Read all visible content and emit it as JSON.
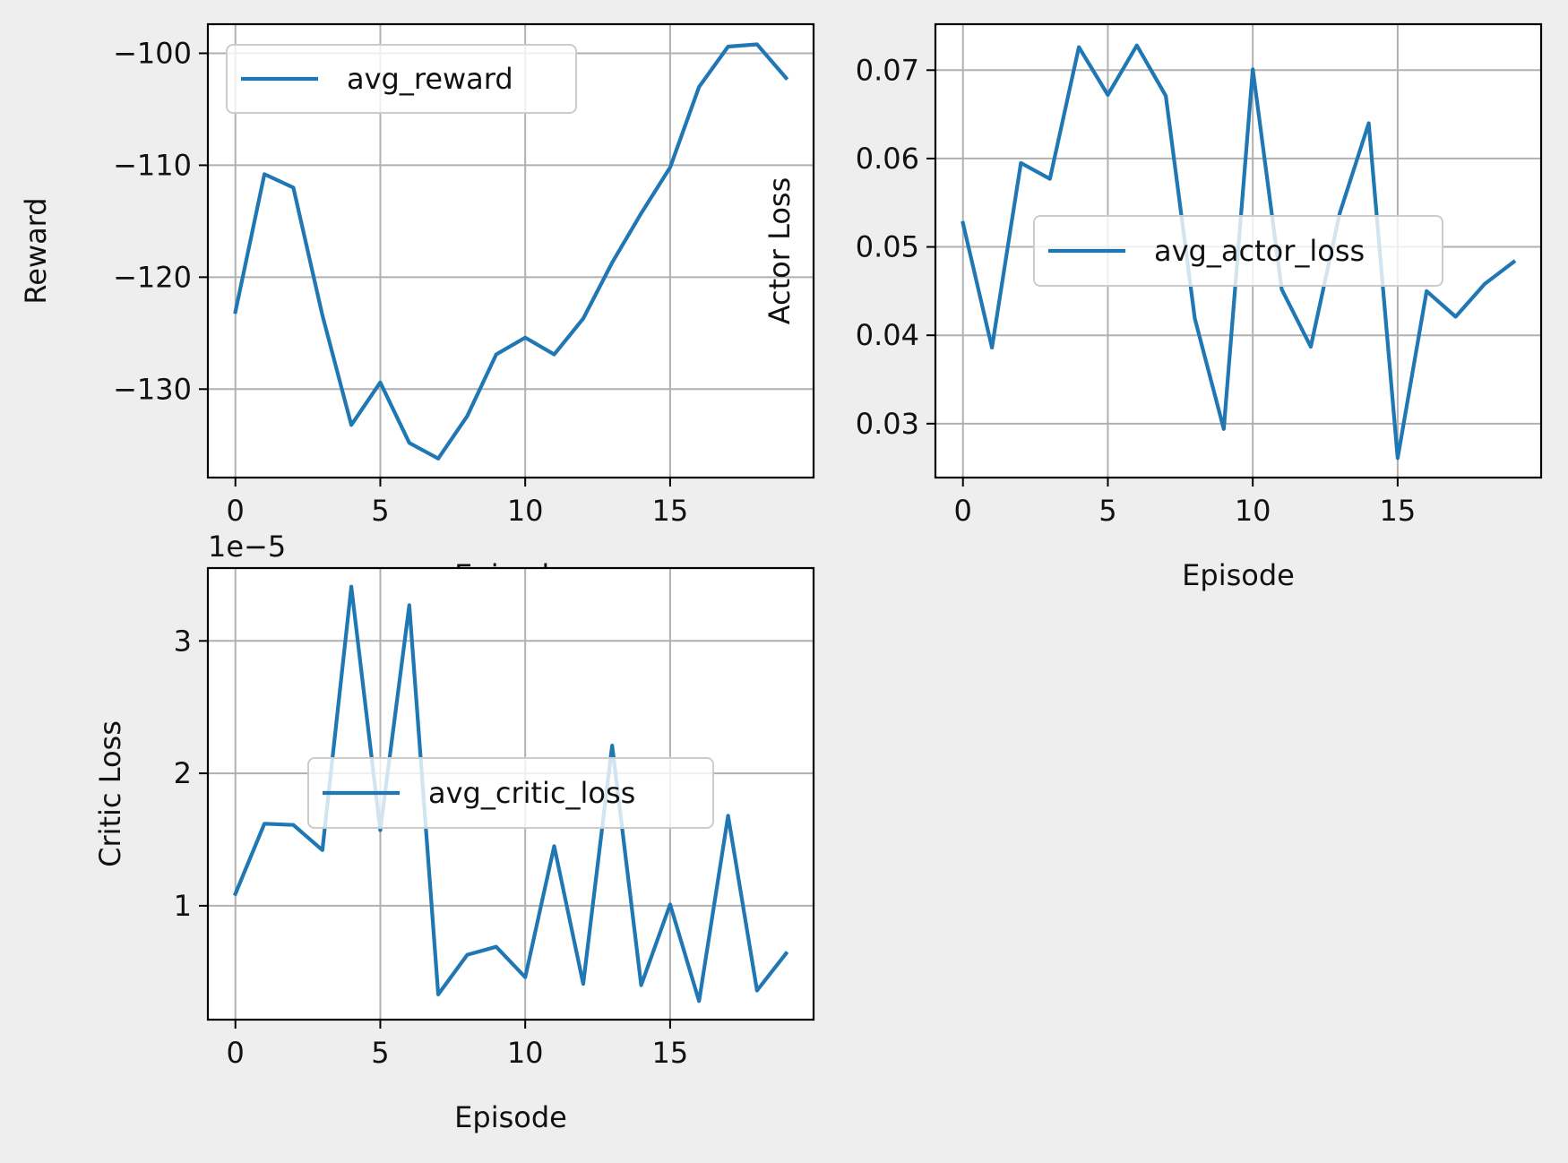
{
  "figure": {
    "background": "#eeeeee"
  },
  "chart_data": [
    {
      "type": "line",
      "id": "reward",
      "xlabel": "Episode",
      "ylabel": "Reward",
      "offset_text": "",
      "x": [
        0,
        1,
        2,
        3,
        4,
        5,
        6,
        7,
        8,
        9,
        10,
        11,
        12,
        13,
        14,
        15,
        16,
        17,
        18,
        19
      ],
      "series": [
        {
          "name": "avg_reward",
          "color": "#1f77b4",
          "values": [
            -123.1,
            -110.8,
            -112.0,
            -123.4,
            -133.2,
            -129.4,
            -134.8,
            -136.2,
            -132.4,
            -126.9,
            -125.4,
            -126.9,
            -123.7,
            -118.7,
            -114.3,
            -110.2,
            -103.0,
            -99.4,
            -99.2,
            -102.2
          ]
        }
      ],
      "xlim": [
        -0.95,
        19.95
      ],
      "ylim": [
        -137.9,
        -97.4
      ],
      "xticks": [
        0,
        5,
        10,
        15
      ],
      "yticks": [
        -130,
        -120,
        -110,
        -100
      ],
      "ytick_labels": [
        "−130",
        "−120",
        "−110",
        "−100"
      ],
      "grid": true,
      "legend": "upper left"
    },
    {
      "type": "line",
      "id": "actor",
      "xlabel": "Episode",
      "ylabel": "Actor Loss",
      "offset_text": "",
      "x": [
        0,
        1,
        2,
        3,
        4,
        5,
        6,
        7,
        8,
        9,
        10,
        11,
        12,
        13,
        14,
        15,
        16,
        17,
        18,
        19
      ],
      "series": [
        {
          "name": "avg_actor_loss",
          "color": "#1f77b4",
          "values": [
            0.0527,
            0.0386,
            0.0595,
            0.0577,
            0.0726,
            0.0672,
            0.0728,
            0.0671,
            0.0419,
            0.0294,
            0.0701,
            0.0452,
            0.0387,
            0.0538,
            0.064,
            0.0261,
            0.045,
            0.0421,
            0.0458,
            0.0483
          ]
        }
      ],
      "xlim": [
        -0.95,
        19.95
      ],
      "ylim": [
        0.0239,
        0.0752
      ],
      "xticks": [
        0,
        5,
        10,
        15
      ],
      "yticks": [
        0.03,
        0.04,
        0.05,
        0.06,
        0.07
      ],
      "ytick_labels": [
        "0.03",
        "0.04",
        "0.05",
        "0.06",
        "0.07"
      ],
      "grid": true,
      "legend": "center right"
    },
    {
      "type": "line",
      "id": "critic",
      "xlabel": "Episode",
      "ylabel": "Critic Loss",
      "offset_text": "1e−5",
      "x": [
        0,
        1,
        2,
        3,
        4,
        5,
        6,
        7,
        8,
        9,
        10,
        11,
        12,
        13,
        14,
        15,
        16,
        17,
        18,
        19
      ],
      "series": [
        {
          "name": "avg_critic_loss",
          "color": "#1f77b4",
          "values": [
            1.09,
            1.62,
            1.61,
            1.42,
            3.41,
            1.57,
            3.27,
            0.33,
            0.63,
            0.69,
            0.46,
            1.45,
            0.41,
            2.21,
            0.4,
            1.01,
            0.28,
            1.68,
            0.36,
            0.64
          ]
        }
      ],
      "xlim": [
        -0.95,
        19.95
      ],
      "ylim": [
        0.14,
        3.55
      ],
      "xticks": [
        0,
        5,
        10,
        15
      ],
      "yticks": [
        1,
        2,
        3
      ],
      "ytick_labels": [
        "1",
        "2",
        "3"
      ],
      "grid": true,
      "legend": "center"
    }
  ]
}
